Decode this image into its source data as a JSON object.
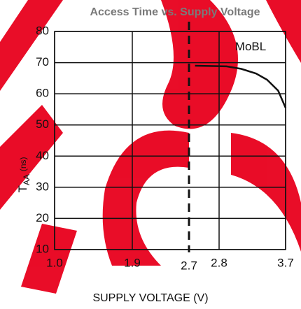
{
  "chart_data": {
    "type": "line",
    "title": "Access Time vs. Supply Voltage",
    "x_label": "SUPPLY VOLTAGE (V)",
    "y_label": {
      "main": "T",
      "sub": "AA",
      "unit": "(ns)"
    },
    "x": [
      2.72,
      2.9,
      3.1,
      3.3,
      3.45,
      3.6,
      3.7
    ],
    "series": [
      {
        "name": "MoBL",
        "color": "#111111",
        "values": [
          69,
          68.8,
          68,
          66.5,
          64.5,
          61,
          55.5
        ]
      }
    ],
    "xlim": [
      1.0,
      3.7
    ],
    "xticks": [
      {
        "value": 1.0,
        "label": "1.0"
      },
      1.9,
      2.7,
      2.8,
      3.7
    ],
    "ylim": [
      10,
      80
    ],
    "yticks": [
      10,
      20,
      30,
      40,
      50,
      60,
      70,
      80
    ],
    "reference_x": 2.7,
    "grid": true
  }
}
